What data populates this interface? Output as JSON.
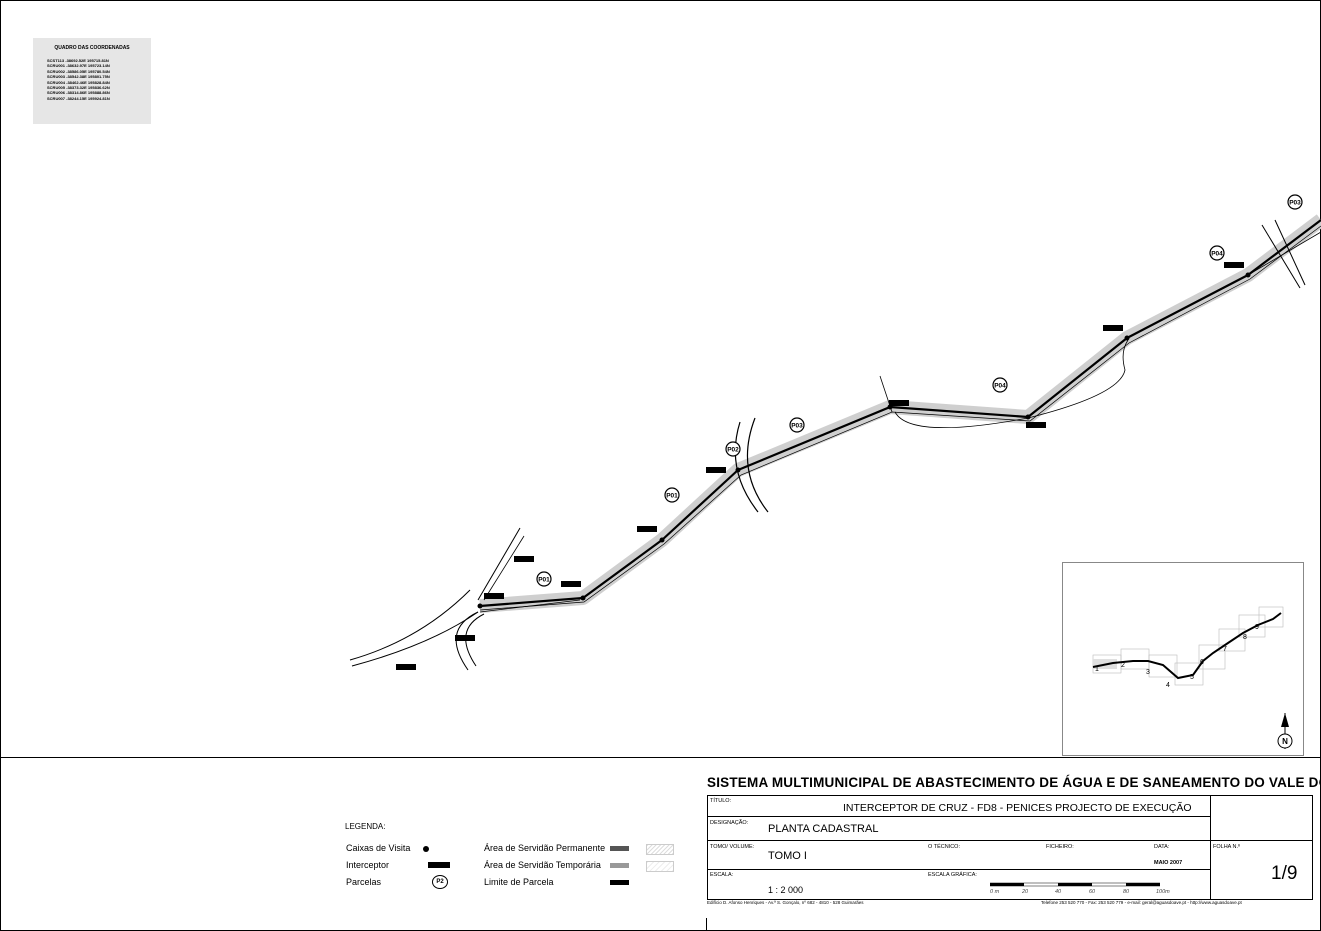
{
  "coords_table": {
    "title": "QUADRO DAS COORDENADAS",
    "rows": [
      "SCST113 -38692.52E 195715.81N",
      "SCRU001 -38632.97E 195723.14N",
      "SCRU002 -38586.05E 195780.54N",
      "SCRU003 -38542.38E 195801.75N",
      "SCRU004 -38462.46E 195828.84N",
      "SCRU005 -38373.32E 195836.62N",
      "SCRU006 -38314.86E 195888.86N",
      "SCRU007 -38244.15E 195924.81N"
    ]
  },
  "parcels": [
    "P01",
    "P01",
    "P02",
    "P03",
    "P04",
    "P04",
    "P03"
  ],
  "legend": {
    "title": "LEGENDA:",
    "items_left": [
      "Caixas de Visita",
      "Interceptor",
      "Parcelas"
    ],
    "parcel_symbol": "P2",
    "items_right": [
      "Área de Servidão Permanente",
      "Área de Servidão Temporária",
      "Limite de Parcela"
    ]
  },
  "title_block": {
    "system": "SISTEMA MULTIMUNICIPAL DE ABASTECIMENTO DE ÁGUA E DE SANEAMENTO DO VALE DO AVE",
    "titulo_label": "TÍTULO:",
    "titulo": "INTERCEPTOR DE CRUZ - FD8 - PENICES  PROJECTO DE EXECUÇÃO",
    "designacao_label": "DESIGNAÇÃO:",
    "designacao": "PLANTA CADASTRAL",
    "tomo_label": "TOMO/ VOLUME:",
    "tomo": "TOMO I",
    "tecnico_label": "O TÉCNICO:",
    "ficheiro_label": "FICHEIRO:",
    "data_label": "DATA:",
    "data": "MAIO 2007",
    "folha_label": "FOLHA N.º",
    "folha": "1/9",
    "escala_label": "ESCALA:",
    "escala": "1 : 2 000",
    "escala_grafica_label": "ESCALA GRÁFICA:",
    "scale_ticks": [
      "0 m",
      "20",
      "40",
      "60",
      "80",
      "100m"
    ],
    "address": "Edifício D. Afonso Henriques - Av.ª S. Gonçalo, nº 682 - 4810 - 528 Guimarães",
    "contacts": "Telefone 253 520 770 - Fax: 253 520 779   -   e-mail: geral@aguasdoave.pt  -  http://www.aguasdoave.pt"
  },
  "inset_sheet_numbers": [
    "1",
    "2",
    "3",
    "4",
    "5",
    "6",
    "7",
    "8",
    "9"
  ],
  "north_symbol": "N"
}
